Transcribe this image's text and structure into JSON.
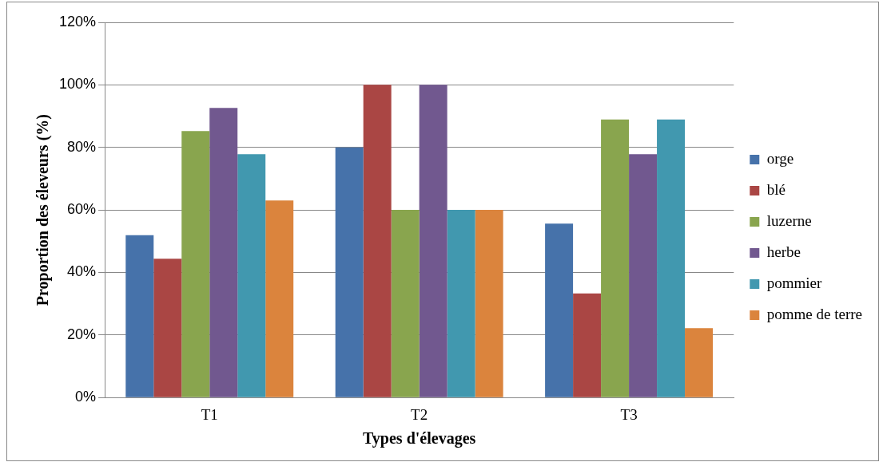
{
  "chart_data": {
    "type": "bar",
    "xlabel": "Types d'élevages",
    "ylabel": "Proportion des éleveurs (%)",
    "categories": [
      "T1",
      "T2",
      "T3"
    ],
    "series": [
      {
        "name": "orge",
        "color": "#4672aa",
        "values": [
          51.9,
          80,
          55.6
        ]
      },
      {
        "name": "blé",
        "color": "#aa4644",
        "values": [
          44.4,
          100,
          33.3
        ]
      },
      {
        "name": "luzerne",
        "color": "#89a54e",
        "values": [
          85.2,
          60,
          88.9
        ]
      },
      {
        "name": "herbe",
        "color": "#71588f",
        "values": [
          92.6,
          100,
          77.8
        ]
      },
      {
        "name": "pommier",
        "color": "#4198af",
        "values": [
          77.8,
          60,
          88.9
        ]
      },
      {
        "name": "pomme de terre",
        "color": "#db843d",
        "values": [
          63,
          60,
          22.2
        ]
      }
    ],
    "ylim": [
      0,
      120
    ],
    "yticks": [
      {
        "value": 0,
        "label": "0%"
      },
      {
        "value": 20,
        "label": "20%"
      },
      {
        "value": 40,
        "label": "40%"
      },
      {
        "value": 60,
        "label": "60%"
      },
      {
        "value": 80,
        "label": "80%"
      },
      {
        "value": 100,
        "label": "100%"
      },
      {
        "value": 120,
        "label": "120%"
      }
    ],
    "grid": "y",
    "legend": "right"
  }
}
